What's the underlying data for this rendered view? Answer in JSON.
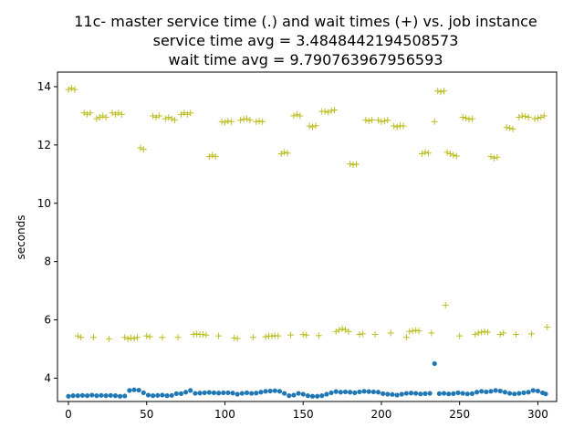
{
  "chart_data": {
    "type": "scatter",
    "title": [
      "11c- master service time (.) and wait times (+) vs. job instance",
      "service time avg = 3.4848442194508573",
      "wait time avg = 9.790763967956593"
    ],
    "xlabel": "",
    "ylabel": "seconds",
    "xlim": [
      -7,
      312
    ],
    "ylim": [
      3.2,
      14.5
    ],
    "xticks": [
      0,
      50,
      100,
      150,
      200,
      250,
      300
    ],
    "yticks": [
      4,
      6,
      8,
      10,
      12,
      14
    ],
    "grid": false,
    "series": [
      {
        "marker": "dot",
        "color": "#1f77b4",
        "points": [
          [
            0,
            3.38
          ],
          [
            3,
            3.4
          ],
          [
            6,
            3.4
          ],
          [
            9,
            3.41
          ],
          [
            12,
            3.4
          ],
          [
            15,
            3.42
          ],
          [
            18,
            3.4
          ],
          [
            21,
            3.41
          ],
          [
            24,
            3.4
          ],
          [
            27,
            3.41
          ],
          [
            30,
            3.4
          ],
          [
            33,
            3.38
          ],
          [
            36,
            3.39
          ],
          [
            39,
            3.58
          ],
          [
            42,
            3.6
          ],
          [
            45,
            3.59
          ],
          [
            48,
            3.5
          ],
          [
            51,
            3.42
          ],
          [
            54,
            3.4
          ],
          [
            57,
            3.41
          ],
          [
            60,
            3.42
          ],
          [
            63,
            3.4
          ],
          [
            66,
            3.41
          ],
          [
            69,
            3.47
          ],
          [
            72,
            3.47
          ],
          [
            75,
            3.52
          ],
          [
            78,
            3.58
          ],
          [
            81,
            3.48
          ],
          [
            84,
            3.49
          ],
          [
            87,
            3.5
          ],
          [
            90,
            3.51
          ],
          [
            93,
            3.5
          ],
          [
            96,
            3.49
          ],
          [
            99,
            3.5
          ],
          [
            102,
            3.5
          ],
          [
            105,
            3.49
          ],
          [
            108,
            3.45
          ],
          [
            111,
            3.48
          ],
          [
            114,
            3.5
          ],
          [
            117,
            3.48
          ],
          [
            120,
            3.49
          ],
          [
            123,
            3.52
          ],
          [
            126,
            3.55
          ],
          [
            129,
            3.56
          ],
          [
            132,
            3.57
          ],
          [
            135,
            3.55
          ],
          [
            138,
            3.48
          ],
          [
            141,
            3.4
          ],
          [
            144,
            3.42
          ],
          [
            147,
            3.48
          ],
          [
            150,
            3.45
          ],
          [
            153,
            3.4
          ],
          [
            156,
            3.38
          ],
          [
            159,
            3.38
          ],
          [
            162,
            3.4
          ],
          [
            165,
            3.45
          ],
          [
            168,
            3.5
          ],
          [
            171,
            3.54
          ],
          [
            174,
            3.52
          ],
          [
            177,
            3.53
          ],
          [
            180,
            3.52
          ],
          [
            183,
            3.5
          ],
          [
            186,
            3.53
          ],
          [
            189,
            3.55
          ],
          [
            192,
            3.54
          ],
          [
            195,
            3.53
          ],
          [
            198,
            3.52
          ],
          [
            201,
            3.47
          ],
          [
            204,
            3.45
          ],
          [
            207,
            3.44
          ],
          [
            210,
            3.42
          ],
          [
            213,
            3.45
          ],
          [
            216,
            3.48
          ],
          [
            219,
            3.49
          ],
          [
            222,
            3.48
          ],
          [
            225,
            3.46
          ],
          [
            228,
            3.47
          ],
          [
            231,
            3.48
          ],
          [
            234,
            4.5
          ],
          [
            237,
            3.47
          ],
          [
            240,
            3.48
          ],
          [
            243,
            3.46
          ],
          [
            246,
            3.47
          ],
          [
            249,
            3.5
          ],
          [
            252,
            3.48
          ],
          [
            255,
            3.46
          ],
          [
            258,
            3.47
          ],
          [
            261,
            3.52
          ],
          [
            264,
            3.55
          ],
          [
            267,
            3.53
          ],
          [
            270,
            3.55
          ],
          [
            273,
            3.58
          ],
          [
            276,
            3.56
          ],
          [
            279,
            3.52
          ],
          [
            282,
            3.48
          ],
          [
            285,
            3.46
          ],
          [
            288,
            3.48
          ],
          [
            291,
            3.5
          ],
          [
            294,
            3.52
          ],
          [
            297,
            3.58
          ],
          [
            300,
            3.56
          ],
          [
            303,
            3.5
          ],
          [
            305,
            3.46
          ]
        ]
      },
      {
        "marker": "plus",
        "color": "#bcbd22",
        "points": [
          [
            0,
            13.9
          ],
          [
            2,
            13.95
          ],
          [
            4,
            13.9
          ],
          [
            6,
            5.45
          ],
          [
            8,
            5.4
          ],
          [
            10,
            13.1
          ],
          [
            12,
            13.05
          ],
          [
            14,
            13.1
          ],
          [
            16,
            5.4
          ],
          [
            18,
            12.9
          ],
          [
            20,
            12.95
          ],
          [
            22,
            13.0
          ],
          [
            24,
            12.95
          ],
          [
            26,
            5.35
          ],
          [
            28,
            13.1
          ],
          [
            30,
            13.05
          ],
          [
            32,
            13.1
          ],
          [
            34,
            13.05
          ],
          [
            36,
            5.4
          ],
          [
            38,
            5.35
          ],
          [
            40,
            5.38
          ],
          [
            42,
            5.36
          ],
          [
            44,
            5.4
          ],
          [
            46,
            11.9
          ],
          [
            48,
            11.85
          ],
          [
            50,
            5.45
          ],
          [
            52,
            5.42
          ],
          [
            54,
            13.0
          ],
          [
            56,
            12.95
          ],
          [
            58,
            13.0
          ],
          [
            60,
            5.4
          ],
          [
            62,
            12.9
          ],
          [
            64,
            12.95
          ],
          [
            66,
            12.9
          ],
          [
            68,
            12.85
          ],
          [
            70,
            5.4
          ],
          [
            72,
            13.05
          ],
          [
            74,
            13.1
          ],
          [
            76,
            13.05
          ],
          [
            78,
            13.1
          ],
          [
            80,
            5.5
          ],
          [
            82,
            5.52
          ],
          [
            84,
            5.5
          ],
          [
            86,
            5.5
          ],
          [
            88,
            5.48
          ],
          [
            90,
            11.6
          ],
          [
            92,
            11.65
          ],
          [
            94,
            11.6
          ],
          [
            96,
            5.45
          ],
          [
            98,
            12.8
          ],
          [
            100,
            12.78
          ],
          [
            102,
            12.82
          ],
          [
            104,
            12.8
          ],
          [
            106,
            5.38
          ],
          [
            108,
            5.36
          ],
          [
            110,
            12.85
          ],
          [
            112,
            12.88
          ],
          [
            114,
            12.9
          ],
          [
            116,
            12.85
          ],
          [
            118,
            5.4
          ],
          [
            120,
            12.8
          ],
          [
            122,
            12.82
          ],
          [
            124,
            12.8
          ],
          [
            126,
            5.42
          ],
          [
            128,
            5.45
          ],
          [
            130,
            5.44
          ],
          [
            132,
            5.46
          ],
          [
            134,
            5.45
          ],
          [
            136,
            11.7
          ],
          [
            138,
            11.75
          ],
          [
            140,
            11.72
          ],
          [
            142,
            5.48
          ],
          [
            144,
            13.0
          ],
          [
            146,
            13.05
          ],
          [
            148,
            13.0
          ],
          [
            150,
            5.5
          ],
          [
            152,
            5.48
          ],
          [
            154,
            12.65
          ],
          [
            156,
            12.62
          ],
          [
            158,
            12.66
          ],
          [
            160,
            5.46
          ],
          [
            162,
            13.15
          ],
          [
            164,
            13.15
          ],
          [
            166,
            13.12
          ],
          [
            168,
            13.18
          ],
          [
            170,
            13.2
          ],
          [
            171,
            5.6
          ],
          [
            173,
            5.65
          ],
          [
            175,
            5.7
          ],
          [
            177,
            5.66
          ],
          [
            179,
            5.6
          ],
          [
            180,
            11.35
          ],
          [
            182,
            11.32
          ],
          [
            184,
            11.34
          ],
          [
            186,
            5.5
          ],
          [
            188,
            5.52
          ],
          [
            190,
            12.85
          ],
          [
            192,
            12.82
          ],
          [
            194,
            12.86
          ],
          [
            196,
            5.5
          ],
          [
            198,
            12.85
          ],
          [
            200,
            12.8
          ],
          [
            202,
            12.82
          ],
          [
            204,
            12.85
          ],
          [
            206,
            5.55
          ],
          [
            208,
            12.65
          ],
          [
            210,
            12.62
          ],
          [
            212,
            12.66
          ],
          [
            214,
            12.65
          ],
          [
            216,
            5.4
          ],
          [
            218,
            5.6
          ],
          [
            220,
            5.62
          ],
          [
            222,
            5.64
          ],
          [
            224,
            5.62
          ],
          [
            226,
            11.7
          ],
          [
            228,
            11.75
          ],
          [
            230,
            11.72
          ],
          [
            232,
            5.55
          ],
          [
            234,
            12.8
          ],
          [
            236,
            13.85
          ],
          [
            238,
            13.82
          ],
          [
            240,
            13.85
          ],
          [
            241,
            6.5
          ],
          [
            242,
            11.75
          ],
          [
            244,
            11.7
          ],
          [
            246,
            11.65
          ],
          [
            248,
            11.62
          ],
          [
            250,
            5.45
          ],
          [
            252,
            12.95
          ],
          [
            254,
            12.92
          ],
          [
            256,
            12.88
          ],
          [
            258,
            12.9
          ],
          [
            260,
            5.5
          ],
          [
            262,
            5.55
          ],
          [
            264,
            5.58
          ],
          [
            266,
            5.6
          ],
          [
            268,
            5.58
          ],
          [
            270,
            11.6
          ],
          [
            272,
            11.55
          ],
          [
            274,
            11.58
          ],
          [
            276,
            5.5
          ],
          [
            278,
            5.55
          ],
          [
            280,
            12.6
          ],
          [
            282,
            12.58
          ],
          [
            284,
            12.55
          ],
          [
            286,
            5.5
          ],
          [
            288,
            12.95
          ],
          [
            290,
            13.0
          ],
          [
            292,
            12.98
          ],
          [
            294,
            12.95
          ],
          [
            296,
            5.52
          ],
          [
            298,
            12.9
          ],
          [
            300,
            12.92
          ],
          [
            302,
            12.95
          ],
          [
            304,
            13.0
          ],
          [
            306,
            5.75
          ]
        ]
      }
    ]
  }
}
